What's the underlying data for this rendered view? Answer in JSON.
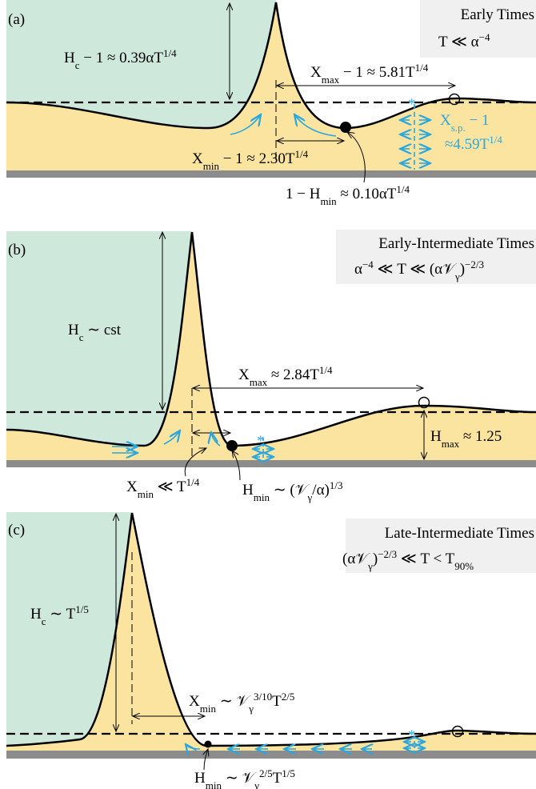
{
  "panels": [
    {
      "tag": "(a)",
      "regime": "Early Times",
      "condition": [
        "T ≪ α",
        "−4"
      ],
      "height_label": [
        "H",
        "c",
        " − 1 ≈ 0.39αT",
        "1/4"
      ],
      "xmax_label": [
        "X",
        "max",
        " − 1 ≈ 5.81T",
        "1/4"
      ],
      "xsp_label": [
        "X",
        "s.p.",
        " − 1"
      ],
      "xsp_value": [
        "≈4.59T",
        "1/4"
      ],
      "xmin_label": [
        "X",
        "min",
        " − 1 ≈ 2.30T",
        "1/4"
      ],
      "hmin_label": [
        "1 − H",
        "min",
        " ≈ 0.10αT",
        "1/4"
      ]
    },
    {
      "tag": "(b)",
      "regime": "Early-Intermediate Times",
      "condition": [
        "α",
        "−4",
        " ≪ T ≪ (α𝒱",
        "γ",
        ")",
        "−2/3"
      ],
      "height_label": [
        "H",
        "c",
        " ∼ cst"
      ],
      "xmax_label": [
        "X",
        "max",
        " ≈ 2.84T",
        "1/4"
      ],
      "hmax_label": [
        "H",
        "max",
        " ≈ 1.25"
      ],
      "xmin_label": [
        "X",
        "min",
        " ≪ T",
        "1/4"
      ],
      "hmin_label": [
        "H",
        "min",
        " ∼ (𝒱",
        "γ",
        "/α)",
        "1/3"
      ]
    },
    {
      "tag": "(c)",
      "regime": "Late-Intermediate Times",
      "condition": [
        "(α𝒱",
        "γ",
        ")",
        "−2/3",
        " ≪ T < T",
        "90%"
      ],
      "height_label": [
        "H",
        "c",
        " ∼ T",
        "1/5"
      ],
      "xmin_label": [
        "X",
        "min",
        " ∼ 𝒱",
        "γ",
        "3/10",
        "T",
        "2/5"
      ],
      "hmin_label": [
        "H",
        "min",
        " ∼ 𝒱",
        "γ",
        "2/5",
        "T",
        "1/5"
      ]
    }
  ]
}
